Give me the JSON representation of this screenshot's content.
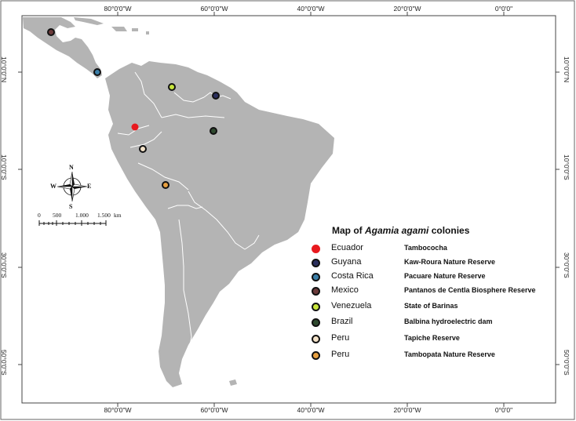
{
  "map": {
    "title_prefix": "Map of ",
    "title_species": "Agamia agami",
    "title_suffix": " colonies",
    "colors": {
      "land": "#b4b4b4",
      "border": "#ffffff",
      "frame": "#444444"
    }
  },
  "graticule": {
    "top": [
      "80°0'0\"W",
      "60°0'0\"W",
      "40°0'0\"W",
      "20°0'0\"W",
      "0°0'0\""
    ],
    "bottom": [
      "80°0'0\"W",
      "60°0'0\"W",
      "40°0'0\"W",
      "20°0'0\"W",
      "0°0'0\""
    ],
    "left": [
      "10°0'0\"N",
      "10°0'0\"S",
      "30°0'0\"S",
      "50°0'0\"S"
    ],
    "right": [
      "10°0'0\"N",
      "10°0'0\"S",
      "30°0'0\"S",
      "50°0'0\"S"
    ]
  },
  "compass": {
    "n": "N",
    "s": "S",
    "e": "E",
    "w": "W"
  },
  "scale_bar": {
    "ticks": [
      "0",
      "500",
      "1.000",
      "1.500"
    ],
    "unit": "km"
  },
  "colonies": [
    {
      "country": "Ecuador",
      "site": "Tambococha",
      "color": "#e8191e",
      "ring": "#e8191e"
    },
    {
      "country": "Guyana",
      "site": "Kaw-Roura Nature Reserve",
      "color": "#2b2f5e",
      "ring": "#111111"
    },
    {
      "country": "Costa Rica",
      "site": "Pacuare Nature Reserve",
      "color": "#3b7fa8",
      "ring": "#111111"
    },
    {
      "country": "Mexico",
      "site": "Pantanos de Centla Biosphere Reserve",
      "color": "#6b3a3a",
      "ring": "#111111"
    },
    {
      "country": "Venezuela",
      "site": "State of Barinas",
      "color": "#c8e63c",
      "ring": "#111111"
    },
    {
      "country": "Brazil",
      "site": "Balbina hydroelectric dam",
      "color": "#2f4a2f",
      "ring": "#111111"
    },
    {
      "country": "Peru",
      "site": "Tapiche Reserve",
      "color": "#f3e2c8",
      "ring": "#111111"
    },
    {
      "country": "Peru",
      "site": "Tambopata Nature Reserve",
      "color": "#e8a040",
      "ring": "#111111"
    }
  ]
}
